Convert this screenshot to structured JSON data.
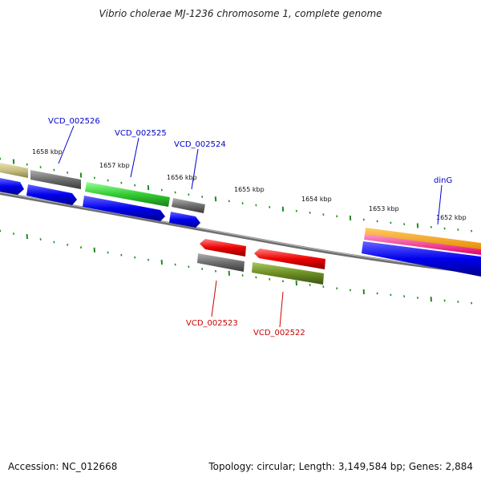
{
  "title": "Vibrio cholerae MJ-1236 chromosome 1, complete genome",
  "footer": {
    "accession": "Accession: NC_012668",
    "summary": "Topology: circular; Length: 3,149,584 bp; Genes: 2,884"
  },
  "colors": {
    "backbone": "#7a7a7a",
    "tick": "#1e8c1e",
    "label_top": "#0000cc",
    "label_bottom": "#cc0000",
    "olive": "#c8c080",
    "gray": "#6e6e6e",
    "blue": "#0000ee",
    "green": "#33cc33",
    "red": "#ee0000",
    "darkolive": "#6b8e23",
    "orange": "#ff9900",
    "magenta": "#ff3399"
  },
  "scale_labels": [
    "1658 kbp",
    "1657 kbp",
    "1656 kbp",
    "1655 kbp",
    "1654 kbp",
    "1653 kbp",
    "1652 kbp"
  ],
  "gene_labels": {
    "top": [
      "VCD_002526",
      "VCD_002525",
      "VCD_002524",
      "dinG"
    ],
    "bottom": [
      "VCD_002523",
      "VCD_002522"
    ]
  }
}
